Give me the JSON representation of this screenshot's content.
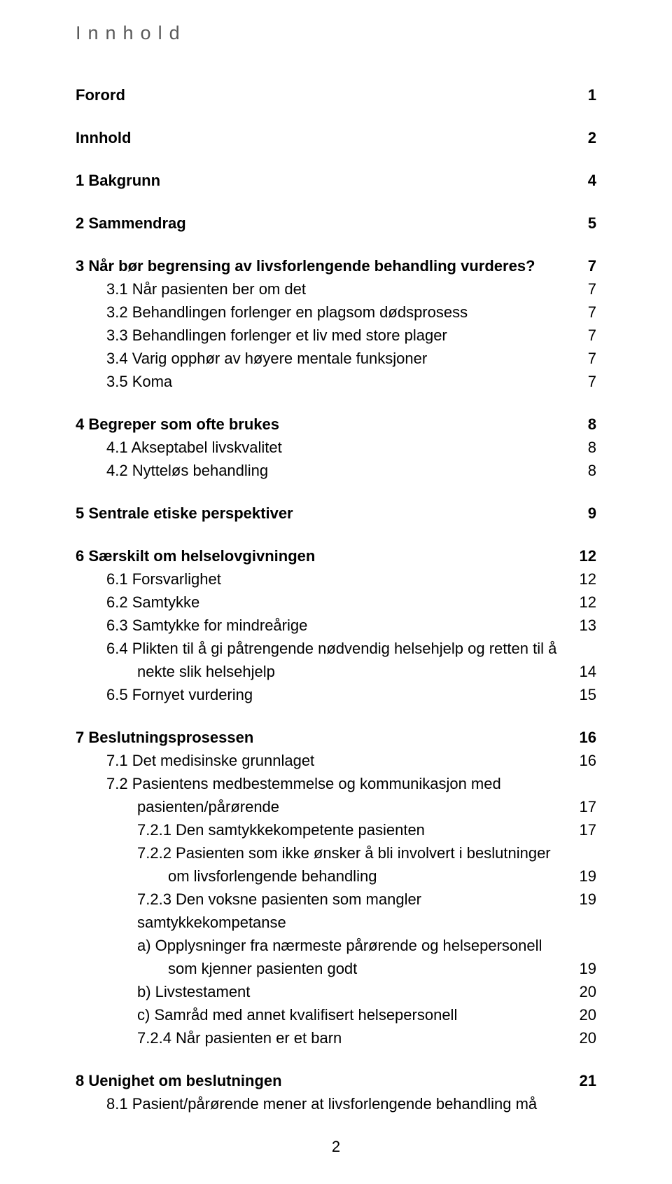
{
  "title": "Innhold",
  "page_number": "2",
  "toc": [
    {
      "label": "Forord",
      "page": "1",
      "bold": true,
      "indent": 0,
      "gap_after": "lg"
    },
    {
      "label": "Innhold",
      "page": "2",
      "bold": true,
      "indent": 0,
      "gap_after": "lg"
    },
    {
      "label": "1 Bakgrunn",
      "page": "4",
      "bold": true,
      "indent": 0,
      "gap_after": "lg"
    },
    {
      "label": "2 Sammendrag",
      "page": "5",
      "bold": true,
      "indent": 0,
      "gap_after": "lg"
    },
    {
      "label": "3 Når bør begrensing av livsforlengende behandling vurderes?",
      "page": "7",
      "bold": true,
      "indent": 0
    },
    {
      "label": "3.1 Når pasienten ber om det",
      "page": "7",
      "bold": false,
      "indent": 1
    },
    {
      "label": "3.2 Behandlingen forlenger en plagsom dødsprosess",
      "page": "7",
      "bold": false,
      "indent": 1
    },
    {
      "label": "3.3 Behandlingen forlenger et liv med store plager",
      "page": "7",
      "bold": false,
      "indent": 1
    },
    {
      "label": "3.4 Varig opphør av høyere mentale funksjoner",
      "page": "7",
      "bold": false,
      "indent": 1
    },
    {
      "label": "3.5 Koma",
      "page": "7",
      "bold": false,
      "indent": 1,
      "gap_after": "lg"
    },
    {
      "label": "4 Begreper som ofte brukes",
      "page": "8",
      "bold": true,
      "indent": 0
    },
    {
      "label": "4.1 Akseptabel livskvalitet",
      "page": "8",
      "bold": false,
      "indent": 1
    },
    {
      "label": "4.2 Nytteløs behandling",
      "page": "8",
      "bold": false,
      "indent": 1,
      "gap_after": "lg"
    },
    {
      "label": "5 Sentrale etiske perspektiver",
      "page": "9",
      "bold": true,
      "indent": 0,
      "gap_after": "lg"
    },
    {
      "label": "6 Særskilt om helselovgivningen",
      "page": "12",
      "bold": true,
      "indent": 0
    },
    {
      "label": "6.1 Forsvarlighet",
      "page": "12",
      "bold": false,
      "indent": 1
    },
    {
      "label": "6.2 Samtykke",
      "page": "12",
      "bold": false,
      "indent": 1
    },
    {
      "label": "6.3 Samtykke for mindreårige",
      "page": "13",
      "bold": false,
      "indent": 1
    },
    {
      "label": "6.4 Plikten til å gi påtrengende nødvendig helsehjelp og retten til å",
      "page": "",
      "bold": false,
      "indent": 1
    },
    {
      "label": "nekte slik helsehjelp",
      "page": "14",
      "bold": false,
      "indent": 2
    },
    {
      "label": "6.5 Fornyet vurdering",
      "page": "15",
      "bold": false,
      "indent": 1,
      "gap_after": "lg"
    },
    {
      "label": "7 Beslutningsprosessen",
      "page": "16",
      "bold": true,
      "indent": 0
    },
    {
      "label": "7.1 Det medisinske grunnlaget",
      "page": "16",
      "bold": false,
      "indent": 1
    },
    {
      "label": "7.2 Pasientens medbestemmelse og kommunikasjon med",
      "page": "",
      "bold": false,
      "indent": 1
    },
    {
      "label": "pasienten/pårørende",
      "page": "17",
      "bold": false,
      "indent": 2
    },
    {
      "label": "7.2.1 Den samtykkekompetente pasienten",
      "page": "17",
      "bold": false,
      "indent": 2
    },
    {
      "label": "7.2.2 Pasienten som ikke ønsker å bli involvert i beslutninger",
      "page": "",
      "bold": false,
      "indent": 2
    },
    {
      "label": "om livsforlengende behandling",
      "page": "19",
      "bold": false,
      "indent": 3
    },
    {
      "label": "7.2.3 Den voksne pasienten som mangler samtykkekompetanse",
      "page": "19",
      "bold": false,
      "indent": 2
    },
    {
      "label": "a) Opplysninger fra nærmeste pårørende og helsepersonell",
      "page": "",
      "bold": false,
      "indent": 2
    },
    {
      "label": "som kjenner pasienten godt",
      "page": "19",
      "bold": false,
      "indent": 3
    },
    {
      "label": "b) Livstestament",
      "page": "20",
      "bold": false,
      "indent": 2
    },
    {
      "label": "c) Samråd med annet kvalifisert helsepersonell",
      "page": "20",
      "bold": false,
      "indent": 2
    },
    {
      "label": "7.2.4 Når pasienten er et barn",
      "page": "20",
      "bold": false,
      "indent": 2,
      "gap_after": "lg"
    },
    {
      "label": "8 Uenighet om beslutningen",
      "page": "21",
      "bold": true,
      "indent": 0
    },
    {
      "label": "8.1 Pasient/pårørende mener at livsforlengende behandling må",
      "page": "",
      "bold": false,
      "indent": 1
    }
  ]
}
